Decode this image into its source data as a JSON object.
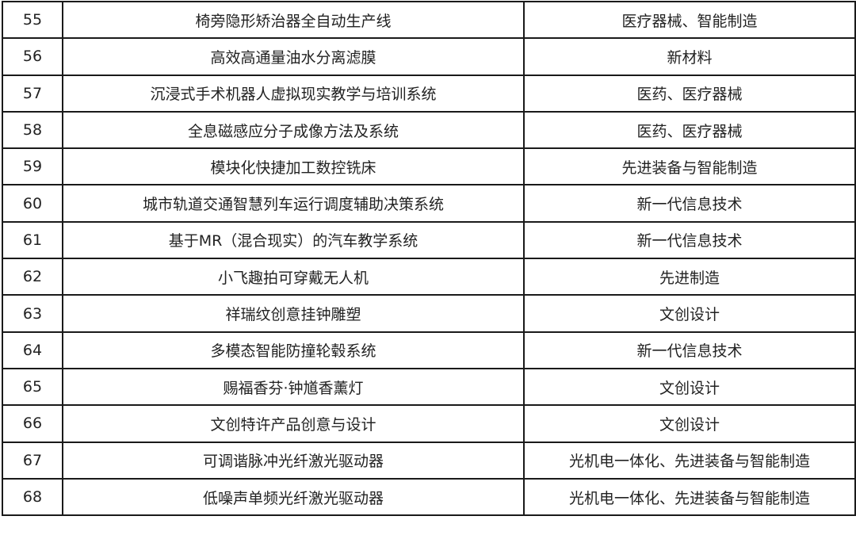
{
  "rows": [
    {
      "no": "55",
      "name": "椅旁隐形矫治器全自动生产线",
      "category": "医疗器械、智能制造"
    },
    {
      "no": "56",
      "name": "高效高通量油水分离滤膜",
      "category": "新材料"
    },
    {
      "no": "57",
      "name": "沉浸式手术机器人虚拟现实教学与培训系统",
      "category": "医药、医疗器械"
    },
    {
      "no": "58",
      "name": "全息磁感应分子成像方法及系统",
      "category": "医药、医疗器械"
    },
    {
      "no": "59",
      "name": "模块化快捷加工数控铣床",
      "category": "先进装备与智能制造"
    },
    {
      "no": "60",
      "name": "城市轨道交通智慧列车运行调度辅助决策系统",
      "category": "新一代信息技术"
    },
    {
      "no": "61",
      "name": "基于MR（混合现实）的汽车教学系统",
      "category": "新一代信息技术"
    },
    {
      "no": "62",
      "name": "小飞趣拍可穿戴无人机",
      "category": "先进制造"
    },
    {
      "no": "63",
      "name": "祥瑞纹创意挂钟雕塑",
      "category": "文创设计"
    },
    {
      "no": "64",
      "name": "多模态智能防撞轮毂系统",
      "category": "新一代信息技术"
    },
    {
      "no": "65",
      "name": "赐福香芬·钟馗香薰灯",
      "category": "文创设计"
    },
    {
      "no": "66",
      "name": "文创特许产品创意与设计",
      "category": "文创设计"
    },
    {
      "no": "67",
      "name": "可调谐脉冲光纤激光驱动器",
      "category": "光机电一体化、先进装备与智能制造"
    },
    {
      "no": "68",
      "name": "低噪声单频光纤激光驱动器",
      "category": "光机电一体化、先进装备与智能制造"
    }
  ]
}
